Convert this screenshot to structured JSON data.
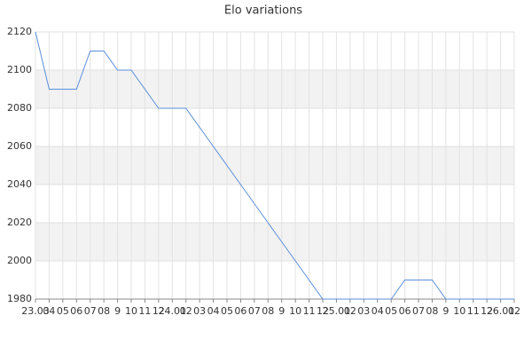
{
  "chart_data": {
    "type": "line",
    "title": "Elo variations",
    "categories": [
      "23.03",
      "04",
      "05",
      "06",
      "07",
      "08",
      "9",
      "10",
      "11",
      "12",
      "24.01",
      "02",
      "03",
      "04",
      "05",
      "06",
      "07",
      "08",
      "9",
      "10",
      "11",
      "12",
      "25.01",
      "02",
      "03",
      "04",
      "05",
      "06",
      "07",
      "08",
      "9",
      "10",
      "11",
      "12",
      "26.01",
      "02"
    ],
    "values": [
      2120,
      2090,
      2090,
      2090,
      2110,
      2110,
      2100,
      2100,
      2090,
      2080,
      2080,
      2080,
      2070,
      2060,
      2050,
      2040,
      2030,
      2020,
      2010,
      2000,
      1990,
      1980,
      1980,
      1980,
      1980,
      1980,
      1980,
      1990,
      1990,
      1990,
      1980,
      1980,
      1980,
      1980,
      1980,
      1980
    ],
    "color": "#5b8fdb",
    "ylim": [
      1980,
      2120
    ],
    "yticks": [
      1980,
      2000,
      2020,
      2040,
      2060,
      2080,
      2100,
      2120
    ],
    "grid": true
  }
}
